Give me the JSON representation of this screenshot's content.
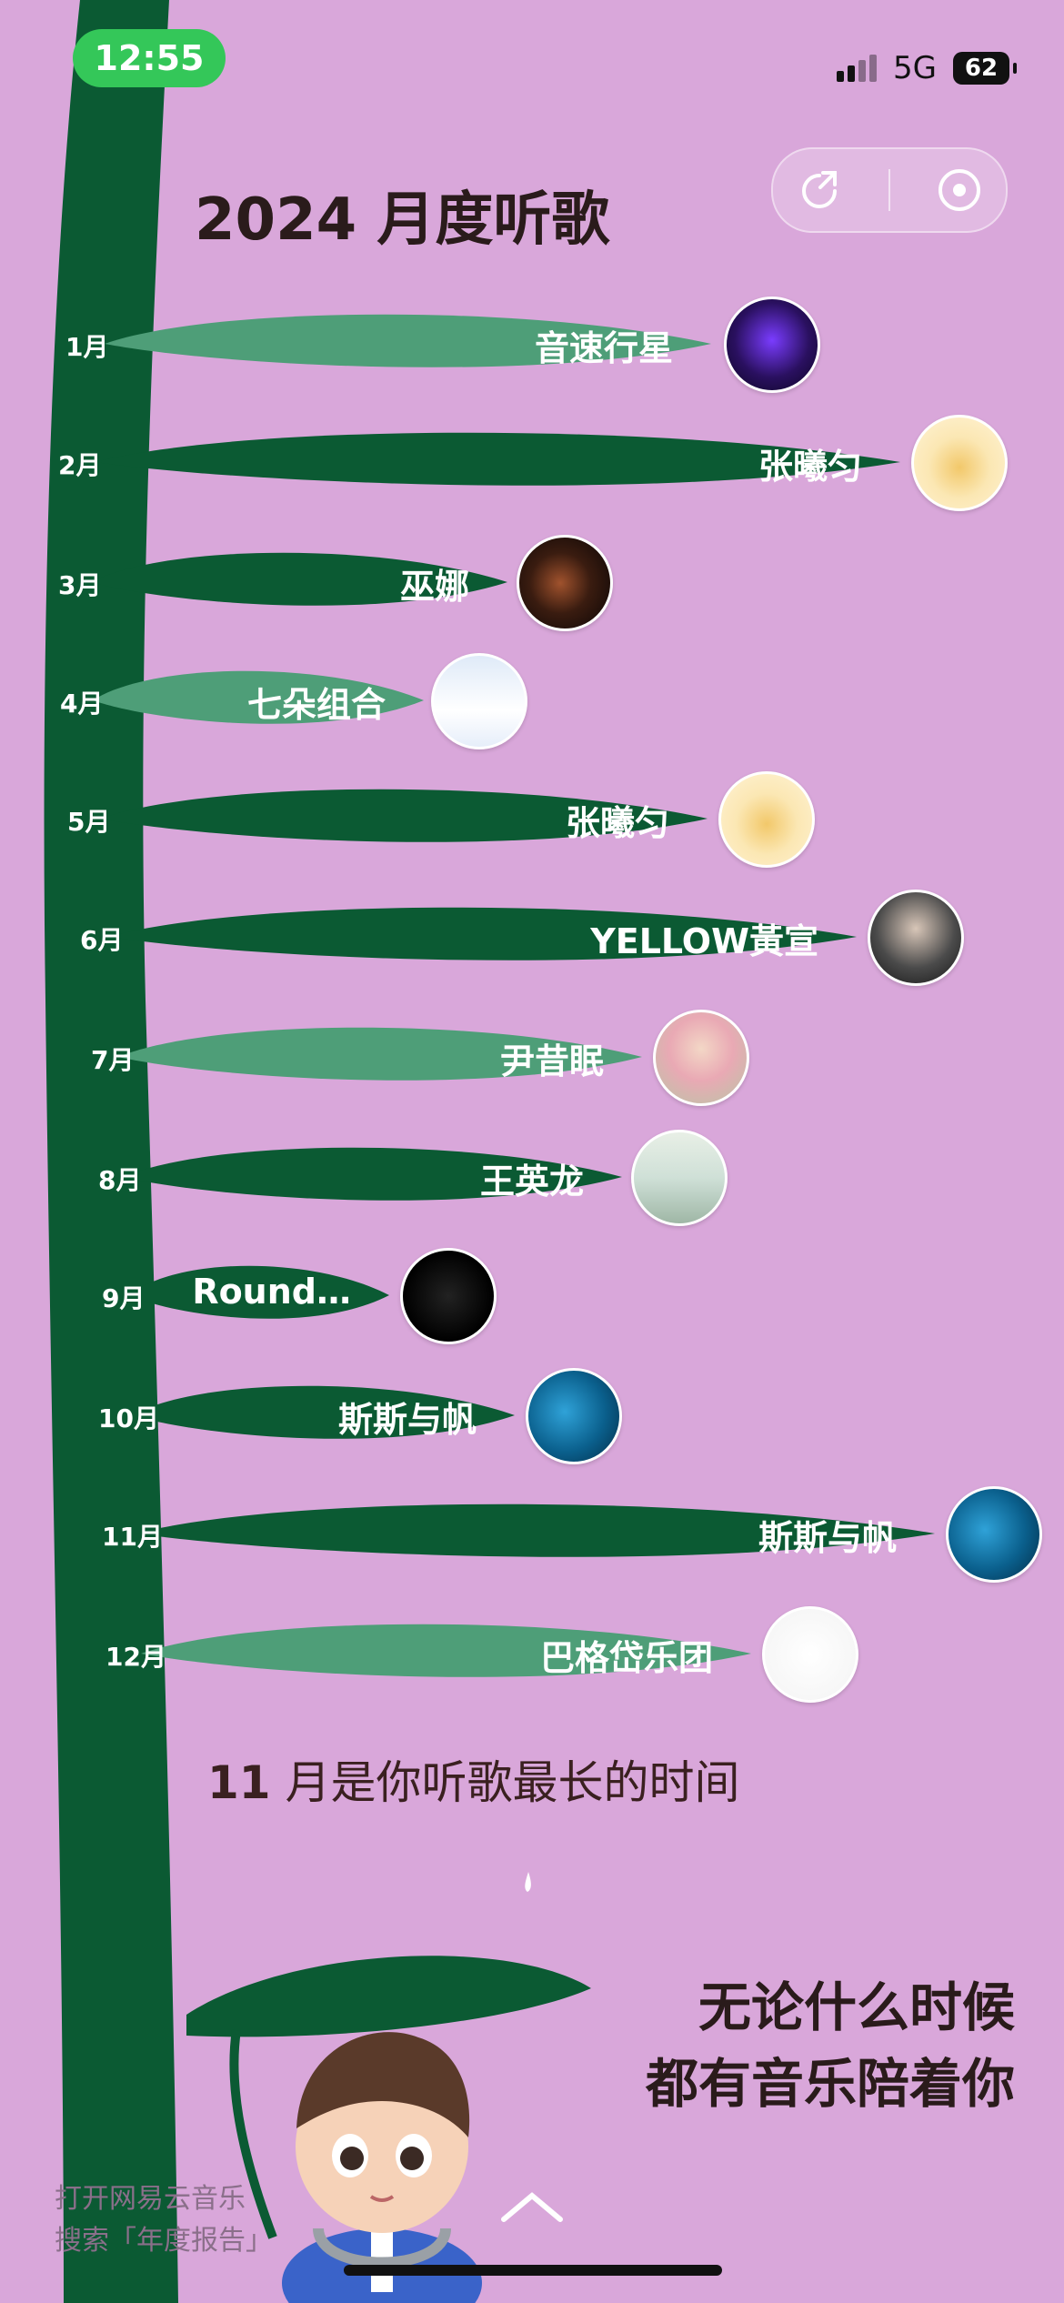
{
  "status_bar": {
    "time": "12:55",
    "network": "5G",
    "battery": "62"
  },
  "title": "2024 月度听歌",
  "months": [
    {
      "month": "1月",
      "artist": "音速行星",
      "shade": "light"
    },
    {
      "month": "2月",
      "artist": "张曦匀",
      "shade": "dark"
    },
    {
      "month": "3月",
      "artist": "巫娜",
      "shade": "dark"
    },
    {
      "month": "4月",
      "artist": "七朵组合",
      "shade": "light"
    },
    {
      "month": "5月",
      "artist": "张曦匀",
      "shade": "dark"
    },
    {
      "month": "6月",
      "artist": "YELLOW黃宣",
      "shade": "dark"
    },
    {
      "month": "7月",
      "artist": "尹昔眠",
      "shade": "light"
    },
    {
      "month": "8月",
      "artist": "王英龙",
      "shade": "dark"
    },
    {
      "month": "9月",
      "artist": "Round…",
      "shade": "dark"
    },
    {
      "month": "10月",
      "artist": "斯斯与帆",
      "shade": "dark"
    },
    {
      "month": "11月",
      "artist": "斯斯与帆",
      "shade": "dark"
    },
    {
      "month": "12月",
      "artist": "巴格岱乐团",
      "shade": "light"
    }
  ],
  "stat": {
    "month_num": "11",
    "text": " 月是你听歌最长的时间"
  },
  "tagline": {
    "line1": "无论什么时候",
    "line2": "都有音乐陪着你"
  },
  "promo": {
    "line1": "打开网易云音乐",
    "line2": "搜索「年度报告」"
  },
  "colors": {
    "background": "#d9a7da",
    "leaf_dark": "#0b5a33",
    "leaf_light": "#4e9e78",
    "stem": "#0b5a33",
    "time_pill": "#34c759"
  },
  "icons": {
    "share": "share-icon",
    "close": "target-close-icon",
    "up": "chevron-up-icon"
  }
}
